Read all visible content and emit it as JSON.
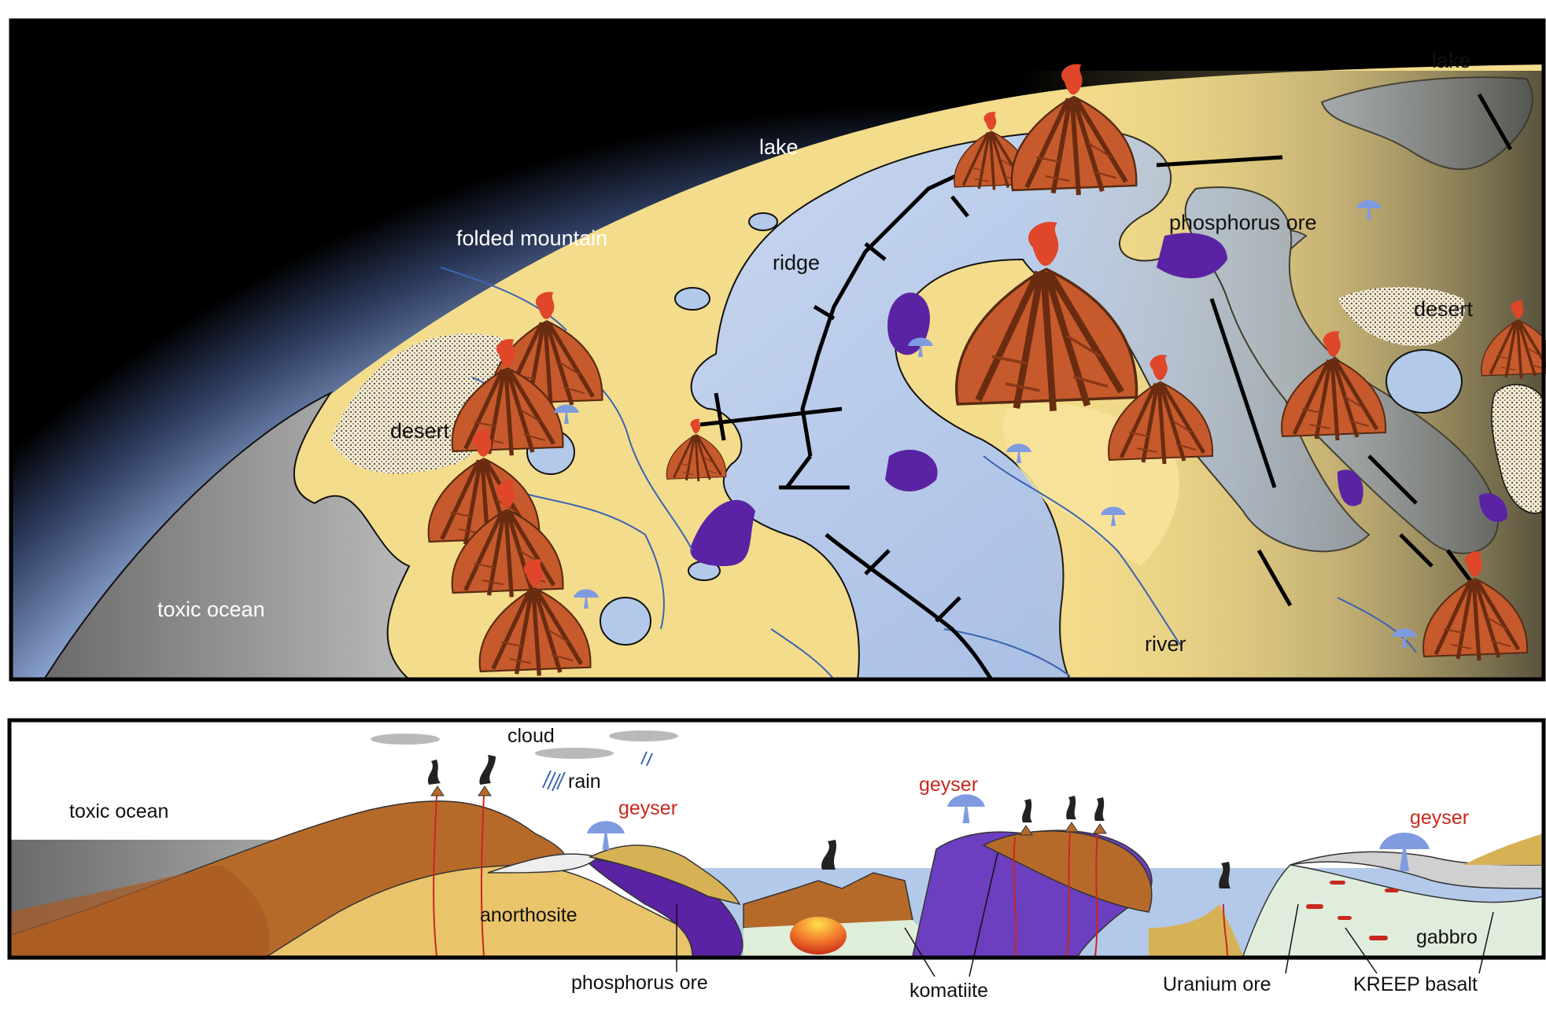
{
  "map_view": {
    "labels": {
      "lake_left": "lake",
      "lake_right": "lake",
      "folded_mountain": "folded mountain",
      "ridge": "ridge",
      "phosphorus_ore": "phosphorus ore",
      "desert_left": "desert",
      "desert_right": "desert",
      "toxic_ocean": "toxic ocean",
      "river": "river"
    }
  },
  "cross_section": {
    "labels": {
      "cloud": "cloud",
      "rain": "rain",
      "toxic_ocean": "toxic ocean",
      "geyser_1": "geyser",
      "geyser_2": "geyser",
      "geyser_3": "geyser",
      "anorthosite": "anorthosite",
      "gabbro": "gabbro",
      "phosphorus_ore": "phosphorus ore",
      "komatiite": "komatiite",
      "uranium_ore": "Uranium ore",
      "kreep_basalt": "KREEP basalt"
    }
  },
  "colors": {
    "space": "#000000",
    "atmosphere": "#a9c1e6",
    "land": "#f3dc8b",
    "lake": "#b3c9ea",
    "volcano": "#c0582a",
    "ore": "#5a23a3",
    "ocean": "#8a8a8a",
    "label_geyser": "#c8281e"
  }
}
